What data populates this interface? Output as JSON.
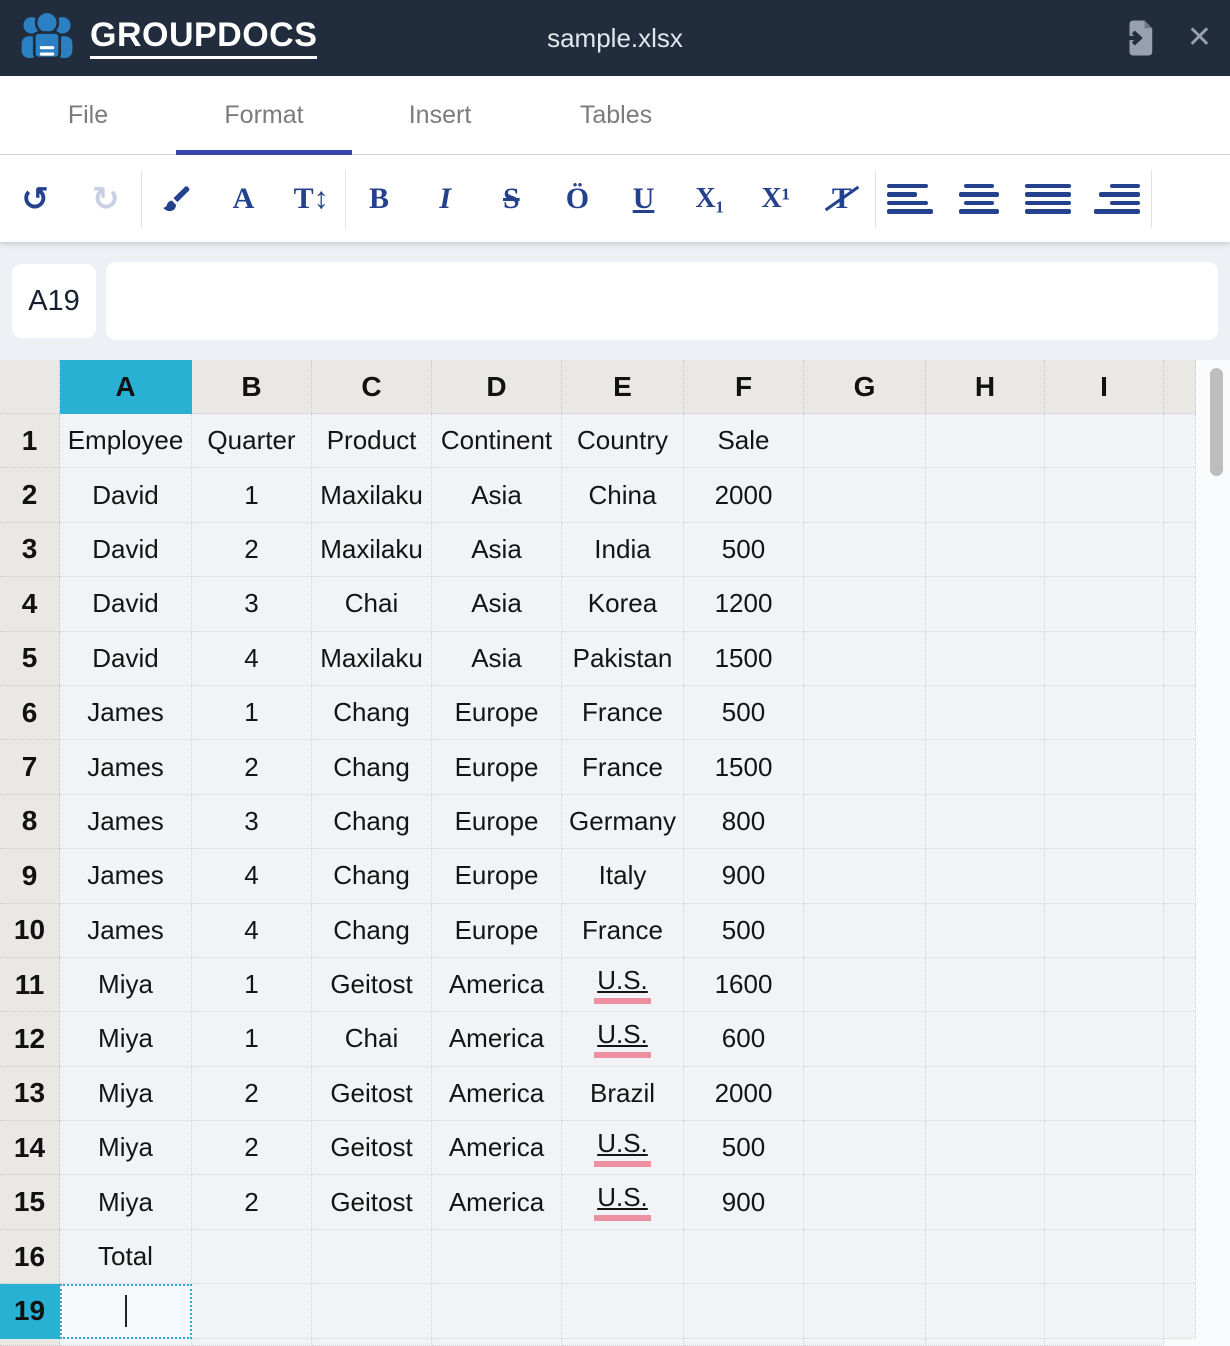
{
  "header": {
    "brand": "GROUPDOCS",
    "title": "sample.xlsx",
    "close_glyph": "✕"
  },
  "tabs": [
    {
      "label": "File",
      "active": false
    },
    {
      "label": "Format",
      "active": true
    },
    {
      "label": "Insert",
      "active": false
    },
    {
      "label": "Tables",
      "active": false
    }
  ],
  "toolbar": {
    "undo": "↺",
    "redo": "↻",
    "font_color": "A",
    "font_size": "T↕",
    "bold": "B",
    "italic": "I",
    "strikethrough": "S",
    "overline": "Ö",
    "underline": "U",
    "subscript": "X₁",
    "superscript": "X¹",
    "clear_format": "T"
  },
  "formula_bar": {
    "cell_ref": "A19",
    "formula_value": ""
  },
  "sheet": {
    "columns": [
      "A",
      "B",
      "C",
      "D",
      "E",
      "F",
      "G",
      "H",
      "I"
    ],
    "selected_column": "A",
    "selected_row": "19",
    "selected_cell": "A19",
    "rows": [
      {
        "n": "1",
        "cells": [
          "Employee",
          "Quarter",
          "Product",
          "Continent",
          "Country",
          "Sale"
        ]
      },
      {
        "n": "2",
        "cells": [
          "David",
          "1",
          "Maxilaku",
          "Asia",
          "China",
          "2000"
        ]
      },
      {
        "n": "3",
        "cells": [
          "David",
          "2",
          "Maxilaku",
          "Asia",
          "India",
          "500"
        ]
      },
      {
        "n": "4",
        "cells": [
          "David",
          "3",
          "Chai",
          "Asia",
          "Korea",
          "1200"
        ]
      },
      {
        "n": "5",
        "cells": [
          "David",
          "4",
          "Maxilaku",
          "Asia",
          "Pakistan",
          "1500"
        ]
      },
      {
        "n": "6",
        "cells": [
          "James",
          "1",
          "Chang",
          "Europe",
          "France",
          "500"
        ]
      },
      {
        "n": "7",
        "cells": [
          "James",
          "2",
          "Chang",
          "Europe",
          "France",
          "1500"
        ]
      },
      {
        "n": "8",
        "cells": [
          "James",
          "3",
          "Chang",
          "Europe",
          "Germany",
          "800"
        ]
      },
      {
        "n": "9",
        "cells": [
          "James",
          "4",
          "Chang",
          "Europe",
          "Italy",
          "900"
        ]
      },
      {
        "n": "10",
        "cells": [
          "James",
          "4",
          "Chang",
          "Europe",
          "France",
          "500"
        ]
      },
      {
        "n": "11",
        "cells": [
          "Miya",
          "1",
          "Geitost",
          "America",
          {
            "text": "U.S.",
            "underline": true,
            "spellcheck": true
          },
          "1600"
        ]
      },
      {
        "n": "12",
        "cells": [
          "Miya",
          "1",
          "Chai",
          "America",
          {
            "text": "U.S.",
            "underline": true,
            "spellcheck": true
          },
          "600"
        ]
      },
      {
        "n": "13",
        "cells": [
          "Miya",
          "2",
          "Geitost",
          "America",
          "Brazil",
          "2000"
        ]
      },
      {
        "n": "14",
        "cells": [
          "Miya",
          "2",
          "Geitost",
          "America",
          {
            "text": "U.S.",
            "underline": true,
            "spellcheck": true
          },
          "500"
        ]
      },
      {
        "n": "15",
        "cells": [
          "Miya",
          "2",
          "Geitost",
          "America",
          {
            "text": "U.S.",
            "underline": true,
            "spellcheck": true
          },
          "900"
        ]
      },
      {
        "n": "16",
        "cells": [
          "Total"
        ]
      },
      {
        "n": "19",
        "cells": []
      }
    ]
  },
  "colors": {
    "appbar_bg": "#212c3c",
    "logo_blue": "#2b80c4",
    "tab_active_underline": "#3949ab",
    "toolbar_icon_blue": "#24418e",
    "selection_cyan": "#29b1d3",
    "spellcheck_pink": "#ef8fa2",
    "cell_bg": "#f1f3f6",
    "header_cell_bg": "#e9e8e4"
  }
}
